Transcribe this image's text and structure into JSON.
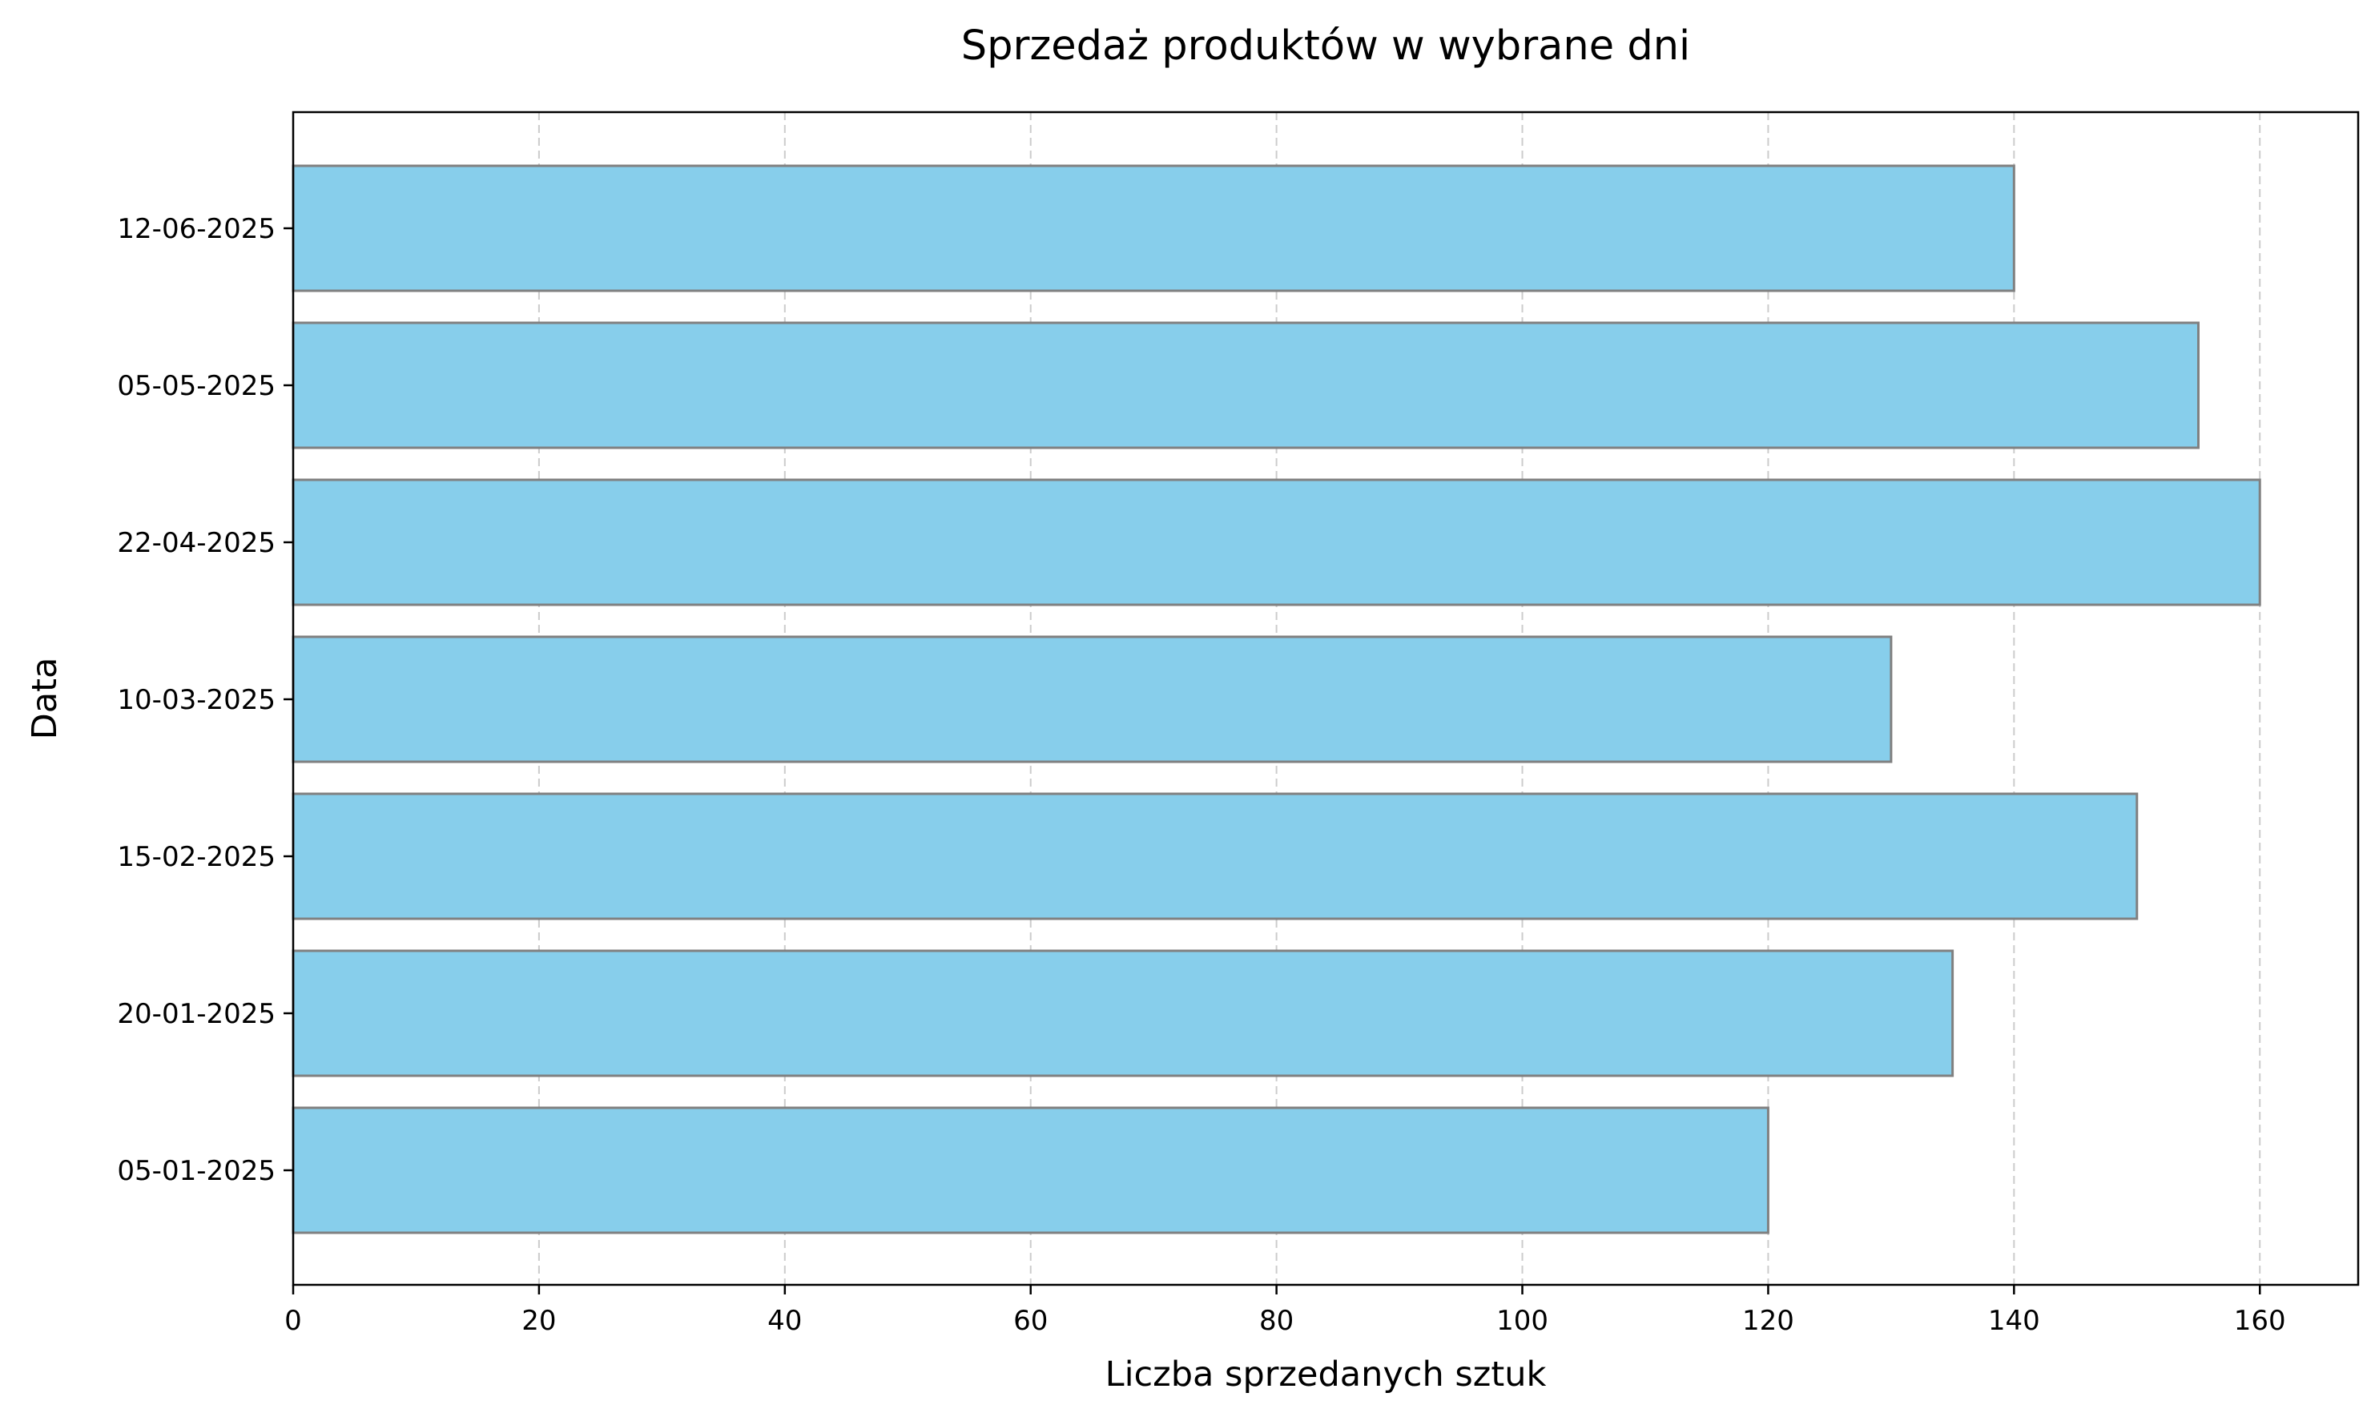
{
  "chart_data": {
    "type": "bar",
    "orientation": "horizontal",
    "title": "Sprzedaż produktów w wybrane dni",
    "xlabel": "Liczba sprzedanych sztuk",
    "ylabel": "Data",
    "categories": [
      "05-01-2025",
      "20-01-2025",
      "15-02-2025",
      "10-03-2025",
      "22-04-2025",
      "05-05-2025",
      "12-06-2025"
    ],
    "values": [
      120,
      135,
      150,
      130,
      160,
      155,
      140
    ],
    "xlim": [
      0,
      168
    ],
    "x_ticks": [
      0,
      20,
      40,
      60,
      80,
      100,
      120,
      140,
      160
    ],
    "grid": "vertical dashed",
    "colors": {
      "bar_fill": "#87ceeb",
      "bar_edge": "#808080",
      "grid": "#cccccc",
      "axes": "#000000"
    }
  }
}
